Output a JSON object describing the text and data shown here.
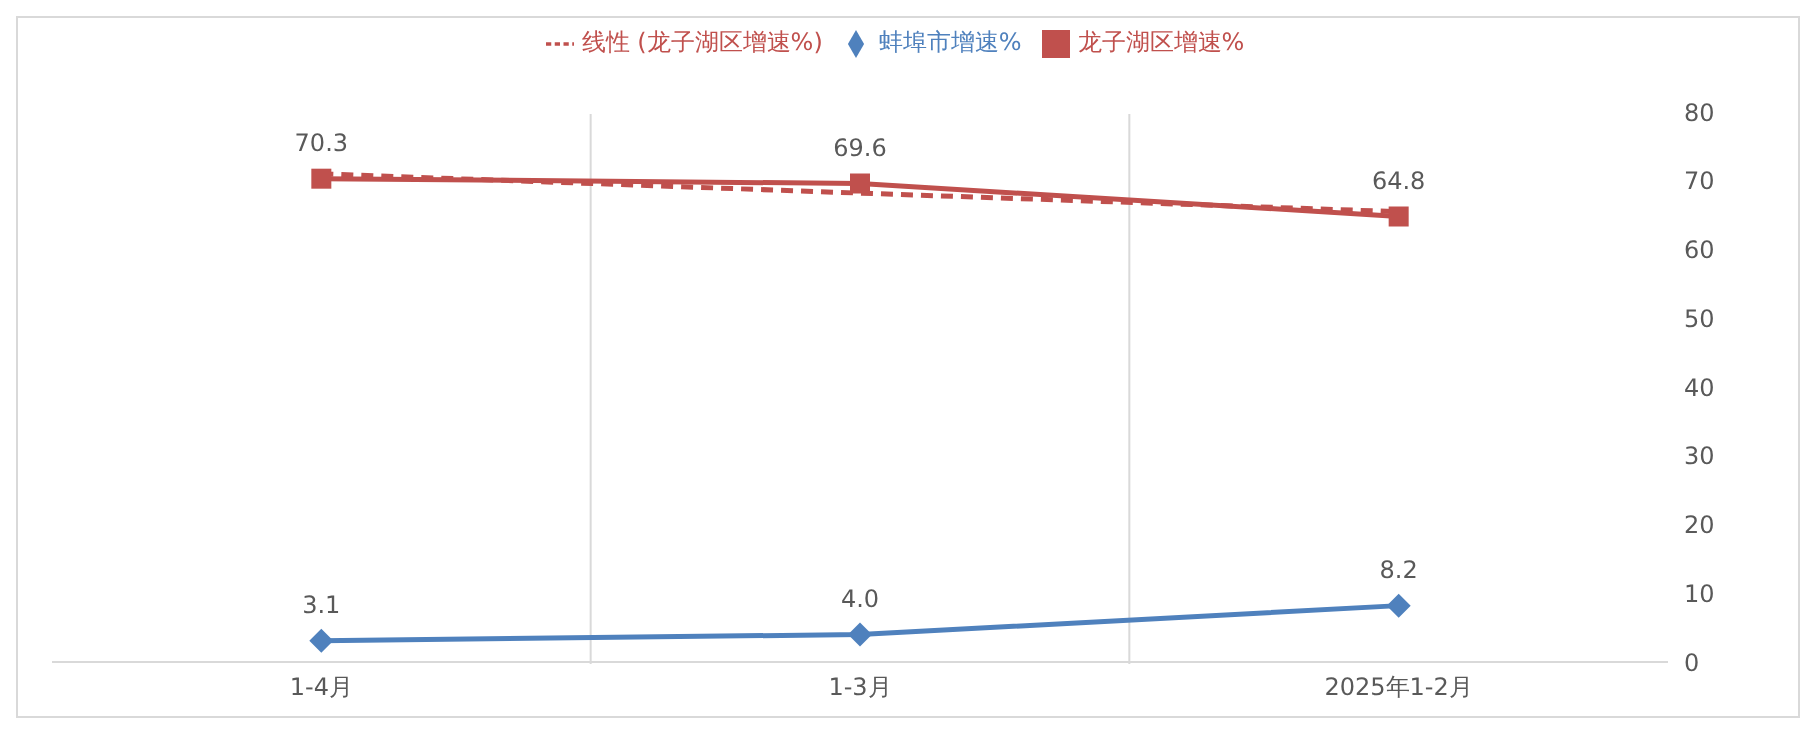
{
  "chart_data": {
    "type": "line",
    "categories": [
      "1-4月",
      "1-3月",
      "2025年1-2月"
    ],
    "series": [
      {
        "name": "线性 (龙子湖区增速%)",
        "color": "#c0504d",
        "values": [
          71.0,
          68.2,
          65.5
        ],
        "line_style": "dashed",
        "marker": "none"
      },
      {
        "name": "龙子湖区增速%",
        "color": "#c0504d",
        "values": [
          70.3,
          69.6,
          64.8
        ],
        "marker": "square",
        "value_labels": [
          "70.3",
          "69.6",
          "64.8"
        ]
      },
      {
        "name": "蚌埠市增速%",
        "color": "#4f81bd",
        "values": [
          3.1,
          4.0,
          8.2
        ],
        "marker": "diamond",
        "value_labels": [
          "3.1",
          "4.0",
          "8.2"
        ]
      }
    ],
    "ylim": [
      0,
      80
    ],
    "yticks": [
      0,
      10,
      20,
      30,
      40,
      50,
      60,
      70,
      80
    ],
    "legend": "top"
  }
}
